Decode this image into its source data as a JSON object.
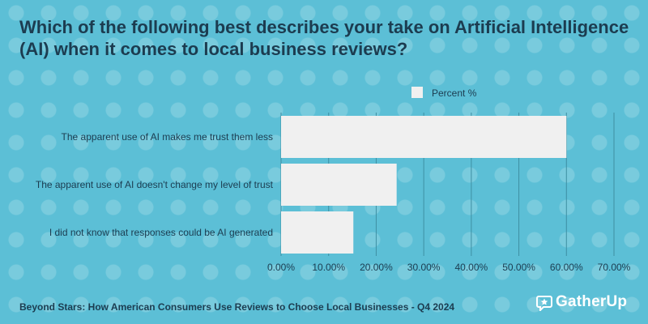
{
  "title": "Which of the following best describes your take on Artificial Intelligence (AI) when it comes to local business reviews?",
  "footer": "Beyond Stars: How American Consumers Use Reviews to Choose Local Businesses - Q4 2024",
  "logo": {
    "text": "GatherUp",
    "icon": "star-chat-icon"
  },
  "colors": {
    "background": "#5cbfd6",
    "bar": "#f0f0f0",
    "text": "#1c3c50",
    "grid": "#3e8fa3"
  },
  "chart_data": {
    "type": "bar",
    "orientation": "horizontal",
    "categories": [
      "The apparent use of AI makes me trust them less",
      "The apparent use of AI doesn't change my level of trust",
      "I did not know that responses could be AI generated"
    ],
    "series": [
      {
        "name": "Percent %",
        "values": [
          60.0,
          24.3,
          15.2
        ]
      }
    ],
    "xlim": [
      0,
      70
    ],
    "xticks": [
      "0.00%",
      "10.00%",
      "20.00%",
      "30.00%",
      "40.00%",
      "50.00%",
      "60.00%",
      "70.00%"
    ],
    "grid": true,
    "legend": "top"
  }
}
